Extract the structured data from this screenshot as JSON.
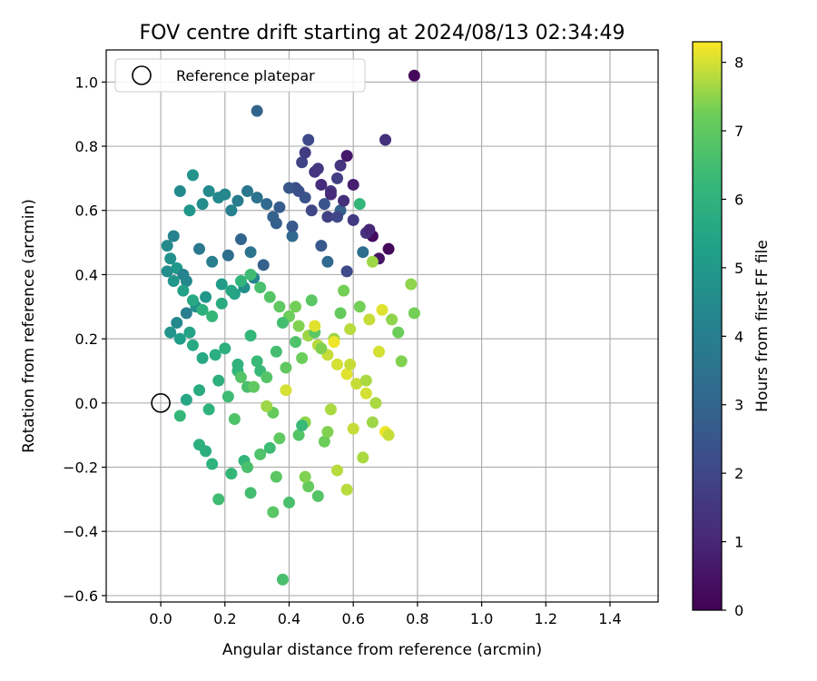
{
  "chart_data": {
    "type": "scatter",
    "title": "FOV centre drift starting at 2024/08/13 02:34:49",
    "xlabel": "Angular distance from reference (arcmin)",
    "ylabel": "Rotation from reference (arcmin)",
    "xlim": [
      -0.17,
      1.55
    ],
    "ylim": [
      -0.62,
      1.1
    ],
    "xticks": [
      "0.0",
      "0.2",
      "0.4",
      "0.6",
      "0.8",
      "1.0",
      "1.2",
      "1.4"
    ],
    "yticks": [
      "−0.6",
      "−0.4",
      "−0.2",
      "0.0",
      "0.2",
      "0.4",
      "0.6",
      "0.8",
      "1.0"
    ],
    "grid": true,
    "legend": {
      "placement": "top-left",
      "entries": [
        "Reference platepar"
      ]
    },
    "reference_point": {
      "x": 0.0,
      "y": 0.0
    },
    "colorbar": {
      "label": "Hours from first FF file",
      "range": [
        0,
        8.3
      ],
      "ticks": [
        "0",
        "1",
        "2",
        "3",
        "4",
        "5",
        "6",
        "7",
        "8"
      ],
      "colormap": "viridis"
    },
    "series": [
      {
        "x": [
          0.79,
          0.7,
          0.71,
          0.68,
          0.66,
          0.64,
          0.6,
          0.58,
          0.56,
          0.55,
          0.53,
          0.5,
          0.49,
          0.46,
          0.44,
          0.42,
          0.45,
          0.52,
          0.56,
          0.62,
          0.3,
          0.45,
          0.48,
          0.53,
          0.57,
          0.6,
          0.65,
          0.55,
          0.51,
          0.47,
          0.43,
          0.4,
          0.37,
          0.36,
          0.41,
          0.5,
          0.52,
          0.58,
          0.63,
          0.66,
          0.41,
          0.35,
          0.33,
          0.3,
          0.27,
          0.24,
          0.22,
          0.2,
          0.18,
          0.15,
          0.13,
          0.1,
          0.09,
          0.06,
          0.04,
          0.02,
          0.03,
          0.05,
          0.07,
          0.08,
          0.12,
          0.16,
          0.21,
          0.25,
          0.28,
          0.32,
          0.29,
          0.26,
          0.23,
          0.19,
          0.14,
          0.11,
          0.08,
          0.05,
          0.03,
          0.06,
          0.1,
          0.17,
          0.24,
          0.31,
          0.02,
          0.04,
          0.07,
          0.1,
          0.13,
          0.16,
          0.19,
          0.22,
          0.25,
          0.28,
          0.31,
          0.34,
          0.37,
          0.4,
          0.43,
          0.46,
          0.49,
          0.52,
          0.55,
          0.58,
          0.61,
          0.64,
          0.67,
          0.7,
          0.72,
          0.62,
          0.56,
          0.48,
          0.42,
          0.36,
          0.3,
          0.24,
          0.18,
          0.12,
          0.08,
          0.06,
          0.15,
          0.21,
          0.27,
          0.33,
          0.39,
          0.44,
          0.5,
          0.54,
          0.59,
          0.65,
          0.69,
          0.57,
          0.47,
          0.38,
          0.28,
          0.2,
          0.13,
          0.09,
          0.23,
          0.35,
          0.45,
          0.53,
          0.6,
          0.51,
          0.43,
          0.34,
          0.26,
          0.14,
          0.27,
          0.36,
          0.46,
          0.55,
          0.63,
          0.52,
          0.44,
          0.37,
          0.31,
          0.22,
          0.16,
          0.12,
          0.18,
          0.28,
          0.4,
          0.49,
          0.58,
          0.66,
          0.71,
          0.75,
          0.79,
          0.78,
          0.74,
          0.68,
          0.64,
          0.59,
          0.54,
          0.48,
          0.42,
          0.39,
          0.33,
          0.29,
          0.25,
          0.35,
          0.45,
          0.38
        ],
        "y": [
          1.02,
          0.82,
          0.48,
          0.45,
          0.52,
          0.53,
          0.68,
          0.77,
          0.74,
          0.7,
          0.66,
          0.68,
          0.73,
          0.82,
          0.75,
          0.67,
          0.64,
          0.58,
          0.6,
          0.62,
          0.91,
          0.78,
          0.72,
          0.65,
          0.63,
          0.57,
          0.54,
          0.58,
          0.62,
          0.6,
          0.66,
          0.67,
          0.61,
          0.56,
          0.52,
          0.49,
          0.44,
          0.41,
          0.47,
          0.44,
          0.55,
          0.58,
          0.62,
          0.64,
          0.66,
          0.63,
          0.6,
          0.65,
          0.64,
          0.66,
          0.62,
          0.71,
          0.6,
          0.66,
          0.52,
          0.49,
          0.45,
          0.42,
          0.4,
          0.38,
          0.48,
          0.44,
          0.46,
          0.51,
          0.47,
          0.43,
          0.39,
          0.36,
          0.34,
          0.37,
          0.33,
          0.3,
          0.28,
          0.25,
          0.22,
          0.2,
          0.18,
          0.15,
          0.12,
          0.1,
          0.41,
          0.38,
          0.35,
          0.32,
          0.29,
          0.27,
          0.31,
          0.35,
          0.38,
          0.4,
          0.36,
          0.33,
          0.3,
          0.27,
          0.24,
          0.21,
          0.18,
          0.15,
          0.12,
          0.09,
          0.06,
          0.03,
          0.0,
          -0.09,
          0.26,
          0.3,
          0.28,
          0.22,
          0.19,
          0.16,
          0.13,
          0.1,
          0.07,
          0.04,
          0.01,
          -0.04,
          -0.02,
          0.02,
          0.05,
          0.08,
          0.11,
          0.14,
          0.17,
          0.2,
          0.23,
          0.26,
          0.29,
          0.35,
          0.32,
          0.25,
          0.21,
          0.17,
          0.14,
          0.22,
          -0.05,
          -0.03,
          -0.06,
          -0.02,
          -0.08,
          -0.12,
          -0.1,
          -0.14,
          -0.18,
          -0.15,
          -0.2,
          -0.23,
          -0.26,
          -0.21,
          -0.17,
          -0.09,
          -0.07,
          -0.11,
          -0.16,
          -0.22,
          -0.19,
          -0.13,
          -0.3,
          -0.28,
          -0.31,
          -0.29,
          -0.27,
          -0.06,
          -0.1,
          0.13,
          0.28,
          0.37,
          0.22,
          0.16,
          0.07,
          0.12,
          0.19,
          0.24,
          0.3,
          0.04,
          -0.01,
          0.05,
          0.08,
          -0.34,
          -0.23,
          -0.55
        ],
        "c": [
          0.2,
          1.3,
          0.2,
          0.5,
          0.3,
          1.4,
          0.8,
          0.6,
          1.4,
          1.8,
          1.5,
          1.2,
          1.6,
          2.1,
          1.9,
          2.2,
          2.4,
          1.8,
          2.9,
          6.2,
          3.0,
          1.7,
          1.5,
          1.1,
          1.3,
          1.6,
          1.0,
          2.0,
          2.4,
          2.0,
          2.3,
          2.5,
          2.7,
          2.8,
          3.1,
          2.6,
          3.2,
          2.1,
          3.4,
          7.6,
          2.6,
          2.9,
          3.2,
          3.5,
          3.7,
          3.9,
          4.1,
          4.3,
          4.4,
          4.5,
          4.6,
          4.8,
          4.9,
          4.4,
          4.2,
          4.5,
          4.7,
          5.0,
          4.1,
          4.3,
          3.8,
          4.0,
          3.3,
          3.0,
          3.6,
          2.9,
          4.2,
          4.6,
          5.4,
          5.1,
          4.9,
          4.7,
          4.0,
          4.4,
          4.8,
          5.2,
          5.6,
          5.8,
          6.0,
          6.3,
          4.6,
          4.9,
          5.3,
          5.6,
          5.9,
          6.2,
          5.7,
          5.5,
          6.1,
          6.4,
          6.6,
          6.8,
          7.0,
          7.2,
          7.4,
          7.6,
          7.8,
          7.9,
          8.0,
          8.1,
          7.9,
          8.0,
          7.7,
          8.2,
          7.5,
          7.3,
          7.1,
          6.9,
          6.7,
          6.5,
          6.3,
          6.1,
          5.9,
          5.7,
          5.5,
          6.2,
          6.0,
          6.4,
          6.6,
          6.8,
          7.0,
          7.2,
          7.4,
          7.6,
          7.8,
          7.9,
          8.1,
          7.3,
          6.9,
          6.5,
          6.2,
          5.9,
          5.6,
          5.4,
          6.7,
          7.1,
          7.5,
          7.7,
          7.9,
          7.2,
          6.8,
          6.4,
          6.1,
          5.8,
          6.6,
          6.9,
          7.1,
          7.8,
          7.7,
          7.4,
          6.3,
          7.0,
          6.7,
          6.2,
          6.0,
          5.9,
          6.4,
          6.5,
          6.6,
          6.8,
          7.8,
          7.6,
          7.9,
          7.4,
          7.3,
          7.5,
          7.2,
          8.0,
          7.7,
          7.9,
          8.2,
          8.1,
          7.3,
          8.0,
          7.6,
          7.0,
          6.8,
          6.9,
          7.4,
          6.6
        ]
      }
    ]
  }
}
